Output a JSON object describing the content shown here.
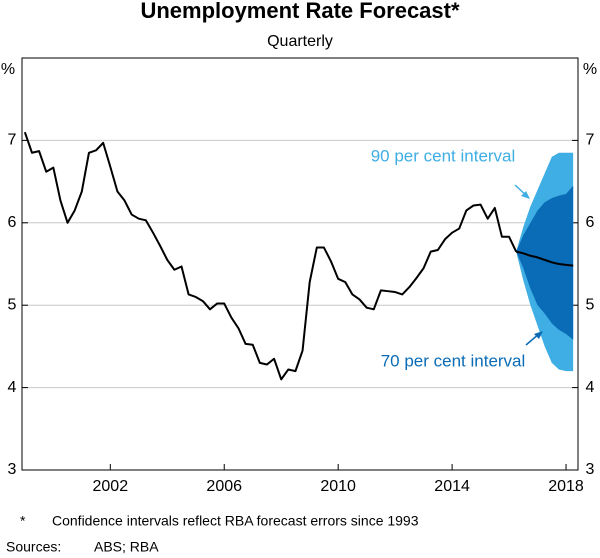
{
  "chart_data": {
    "type": "line",
    "title": "Unemployment Rate Forecast*",
    "subtitle": "Quarterly",
    "y_unit": "%",
    "xlim": [
      1998.9,
      2018.42
    ],
    "xticks": [
      2002,
      2006,
      2010,
      2014,
      2018
    ],
    "ylim": [
      3,
      8
    ],
    "yticks": [
      3,
      4,
      5,
      6,
      7
    ],
    "grid": true,
    "series": [
      {
        "color": "#000000",
        "x": [
          1999,
          1999.25,
          1999.5,
          1999.75,
          2000,
          2000.25,
          2000.5,
          2000.75,
          2001,
          2001.25,
          2001.5,
          2001.75,
          2002,
          2002.25,
          2002.5,
          2002.75,
          2003,
          2003.25,
          2003.5,
          2003.75,
          2004,
          2004.25,
          2004.5,
          2004.75,
          2005,
          2005.25,
          2005.5,
          2005.75,
          2006,
          2006.25,
          2006.5,
          2006.75,
          2007,
          2007.25,
          2007.5,
          2007.75,
          2008,
          2008.25,
          2008.5,
          2008.75,
          2009,
          2009.25,
          2009.5,
          2009.75,
          2010,
          2010.25,
          2010.5,
          2010.75,
          2011,
          2011.25,
          2011.5,
          2011.75,
          2012,
          2012.25,
          2012.5,
          2012.75,
          2013,
          2013.25,
          2013.5,
          2013.75,
          2014,
          2014.25,
          2014.5,
          2014.75,
          2015,
          2015.25,
          2015.5,
          2015.75,
          2016,
          2016.25
        ],
        "values": [
          7.1,
          6.85,
          6.87,
          6.62,
          6.67,
          6.27,
          6.0,
          6.15,
          6.38,
          6.85,
          6.88,
          6.97,
          6.68,
          6.38,
          6.27,
          6.1,
          6.05,
          6.03,
          5.88,
          5.72,
          5.55,
          5.43,
          5.47,
          5.13,
          5.1,
          5.05,
          4.95,
          5.02,
          5.02,
          4.85,
          4.72,
          4.53,
          4.52,
          4.3,
          4.28,
          4.35,
          4.1,
          4.22,
          4.2,
          4.45,
          5.28,
          5.7,
          5.7,
          5.53,
          5.32,
          5.28,
          5.13,
          5.07,
          4.97,
          4.95,
          5.18,
          5.17,
          5.16,
          5.13,
          5.22,
          5.33,
          5.45,
          5.65,
          5.67,
          5.8,
          5.88,
          5.93,
          6.15,
          6.21,
          6.22,
          6.05,
          6.18,
          5.83,
          5.83,
          5.65
        ]
      },
      {
        "color": "#000000",
        "x": [
          2016.25,
          2016.5,
          2016.75,
          2017,
          2017.25,
          2017.5,
          2017.75,
          2018,
          2018.25
        ],
        "values": [
          5.65,
          5.63,
          5.6,
          5.58,
          5.55,
          5.52,
          5.5,
          5.49,
          5.48
        ]
      }
    ],
    "bands": [
      {
        "name": "90 per cent interval",
        "color": "#3eaee4",
        "x": [
          2016.25,
          2016.5,
          2016.75,
          2017,
          2017.25,
          2017.5,
          2017.75,
          2018,
          2018.25
        ],
        "upper": [
          5.65,
          5.95,
          6.2,
          6.4,
          6.6,
          6.8,
          6.85,
          6.85,
          6.85
        ],
        "lower": [
          5.65,
          5.3,
          5.0,
          4.75,
          4.5,
          4.3,
          4.22,
          4.2,
          4.2
        ]
      },
      {
        "name": "70 per cent interval",
        "color": "#0a6cb6",
        "x": [
          2016.25,
          2016.5,
          2016.75,
          2017,
          2017.25,
          2017.5,
          2017.75,
          2018,
          2018.25
        ],
        "upper": [
          5.65,
          5.85,
          6.0,
          6.15,
          6.25,
          6.3,
          6.33,
          6.35,
          6.45
        ],
        "lower": [
          5.65,
          5.45,
          5.2,
          5.0,
          4.9,
          4.78,
          4.7,
          4.65,
          4.58
        ]
      }
    ],
    "notes": [
      [
        "*",
        "Confidence intervals reflect RBA forecast errors since 1993"
      ],
      [
        "Sources:",
        "ABS; RBA"
      ]
    ]
  }
}
